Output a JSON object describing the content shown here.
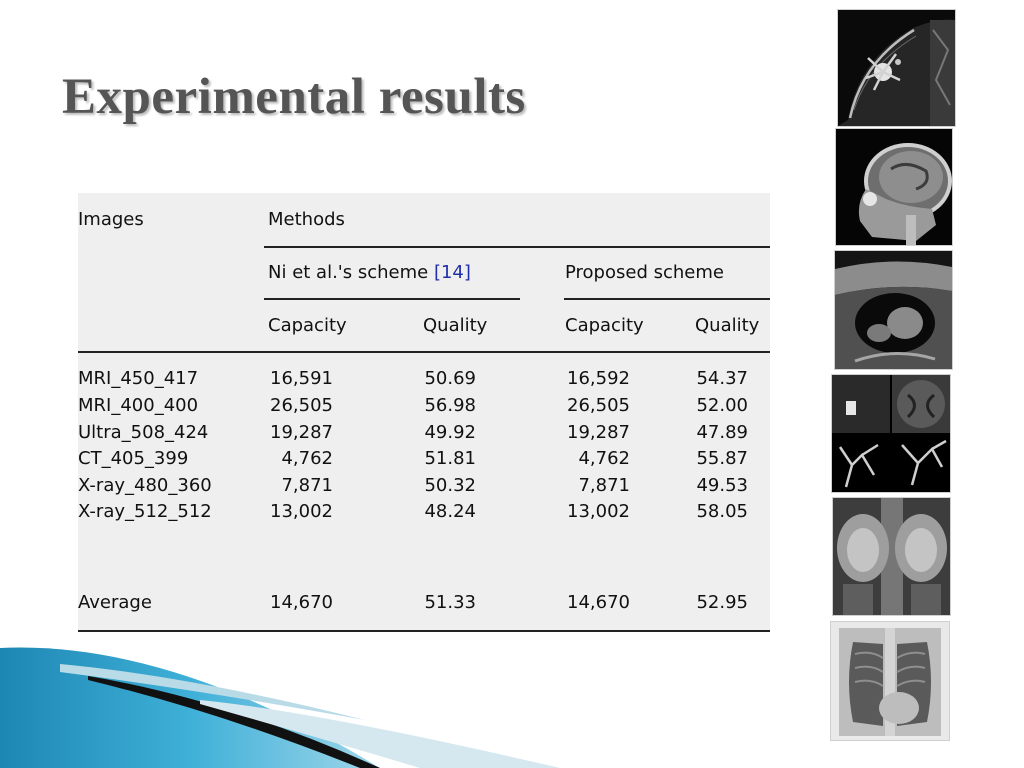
{
  "slide": {
    "title": "Experimental results"
  },
  "table": {
    "header": {
      "images": "Images",
      "methods": "Methods",
      "scheme_a_name": "Ni et al.'s scheme",
      "scheme_a_ref": "[14]",
      "scheme_b_name": "Proposed scheme",
      "capacity": "Capacity",
      "quality": "Quality"
    },
    "rows": [
      {
        "image": "MRI_450_417",
        "ni_capacity": "16,591",
        "ni_quality": "50.69",
        "proposed_capacity": "16,592",
        "proposed_quality": "54.37"
      },
      {
        "image": "MRI_400_400",
        "ni_capacity": "26,505",
        "ni_quality": "56.98",
        "proposed_capacity": "26,505",
        "proposed_quality": "52.00"
      },
      {
        "image": "Ultra_508_424",
        "ni_capacity": "19,287",
        "ni_quality": "49.92",
        "proposed_capacity": "19,287",
        "proposed_quality": "47.89"
      },
      {
        "image": "CT_405_399",
        "ni_capacity": "4,762",
        "ni_quality": "51.81",
        "proposed_capacity": "4,762",
        "proposed_quality": "55.87"
      },
      {
        "image": "X-ray_480_360",
        "ni_capacity": "7,871",
        "ni_quality": "50.32",
        "proposed_capacity": "7,871",
        "proposed_quality": "49.53"
      },
      {
        "image": "X-ray_512_512",
        "ni_capacity": "13,002",
        "ni_quality": "48.24",
        "proposed_capacity": "13,002",
        "proposed_quality": "58.05"
      }
    ],
    "average": {
      "image": "Average",
      "ni_capacity": "14,670",
      "ni_quality": "51.33",
      "proposed_capacity": "14,670",
      "proposed_quality": "52.95"
    }
  },
  "thumbnails": [
    {
      "kind": "breast-mri"
    },
    {
      "kind": "brain-mri-sagittal"
    },
    {
      "kind": "ultrasound"
    },
    {
      "kind": "ct-angiography-montage"
    },
    {
      "kind": "pelvis-xray"
    },
    {
      "kind": "chest-xray"
    }
  ],
  "theme": {
    "accent": "#2a9ec4",
    "table_bg": "#efefef",
    "title_color": "#555555",
    "ref_color": "#1f2fa8"
  }
}
